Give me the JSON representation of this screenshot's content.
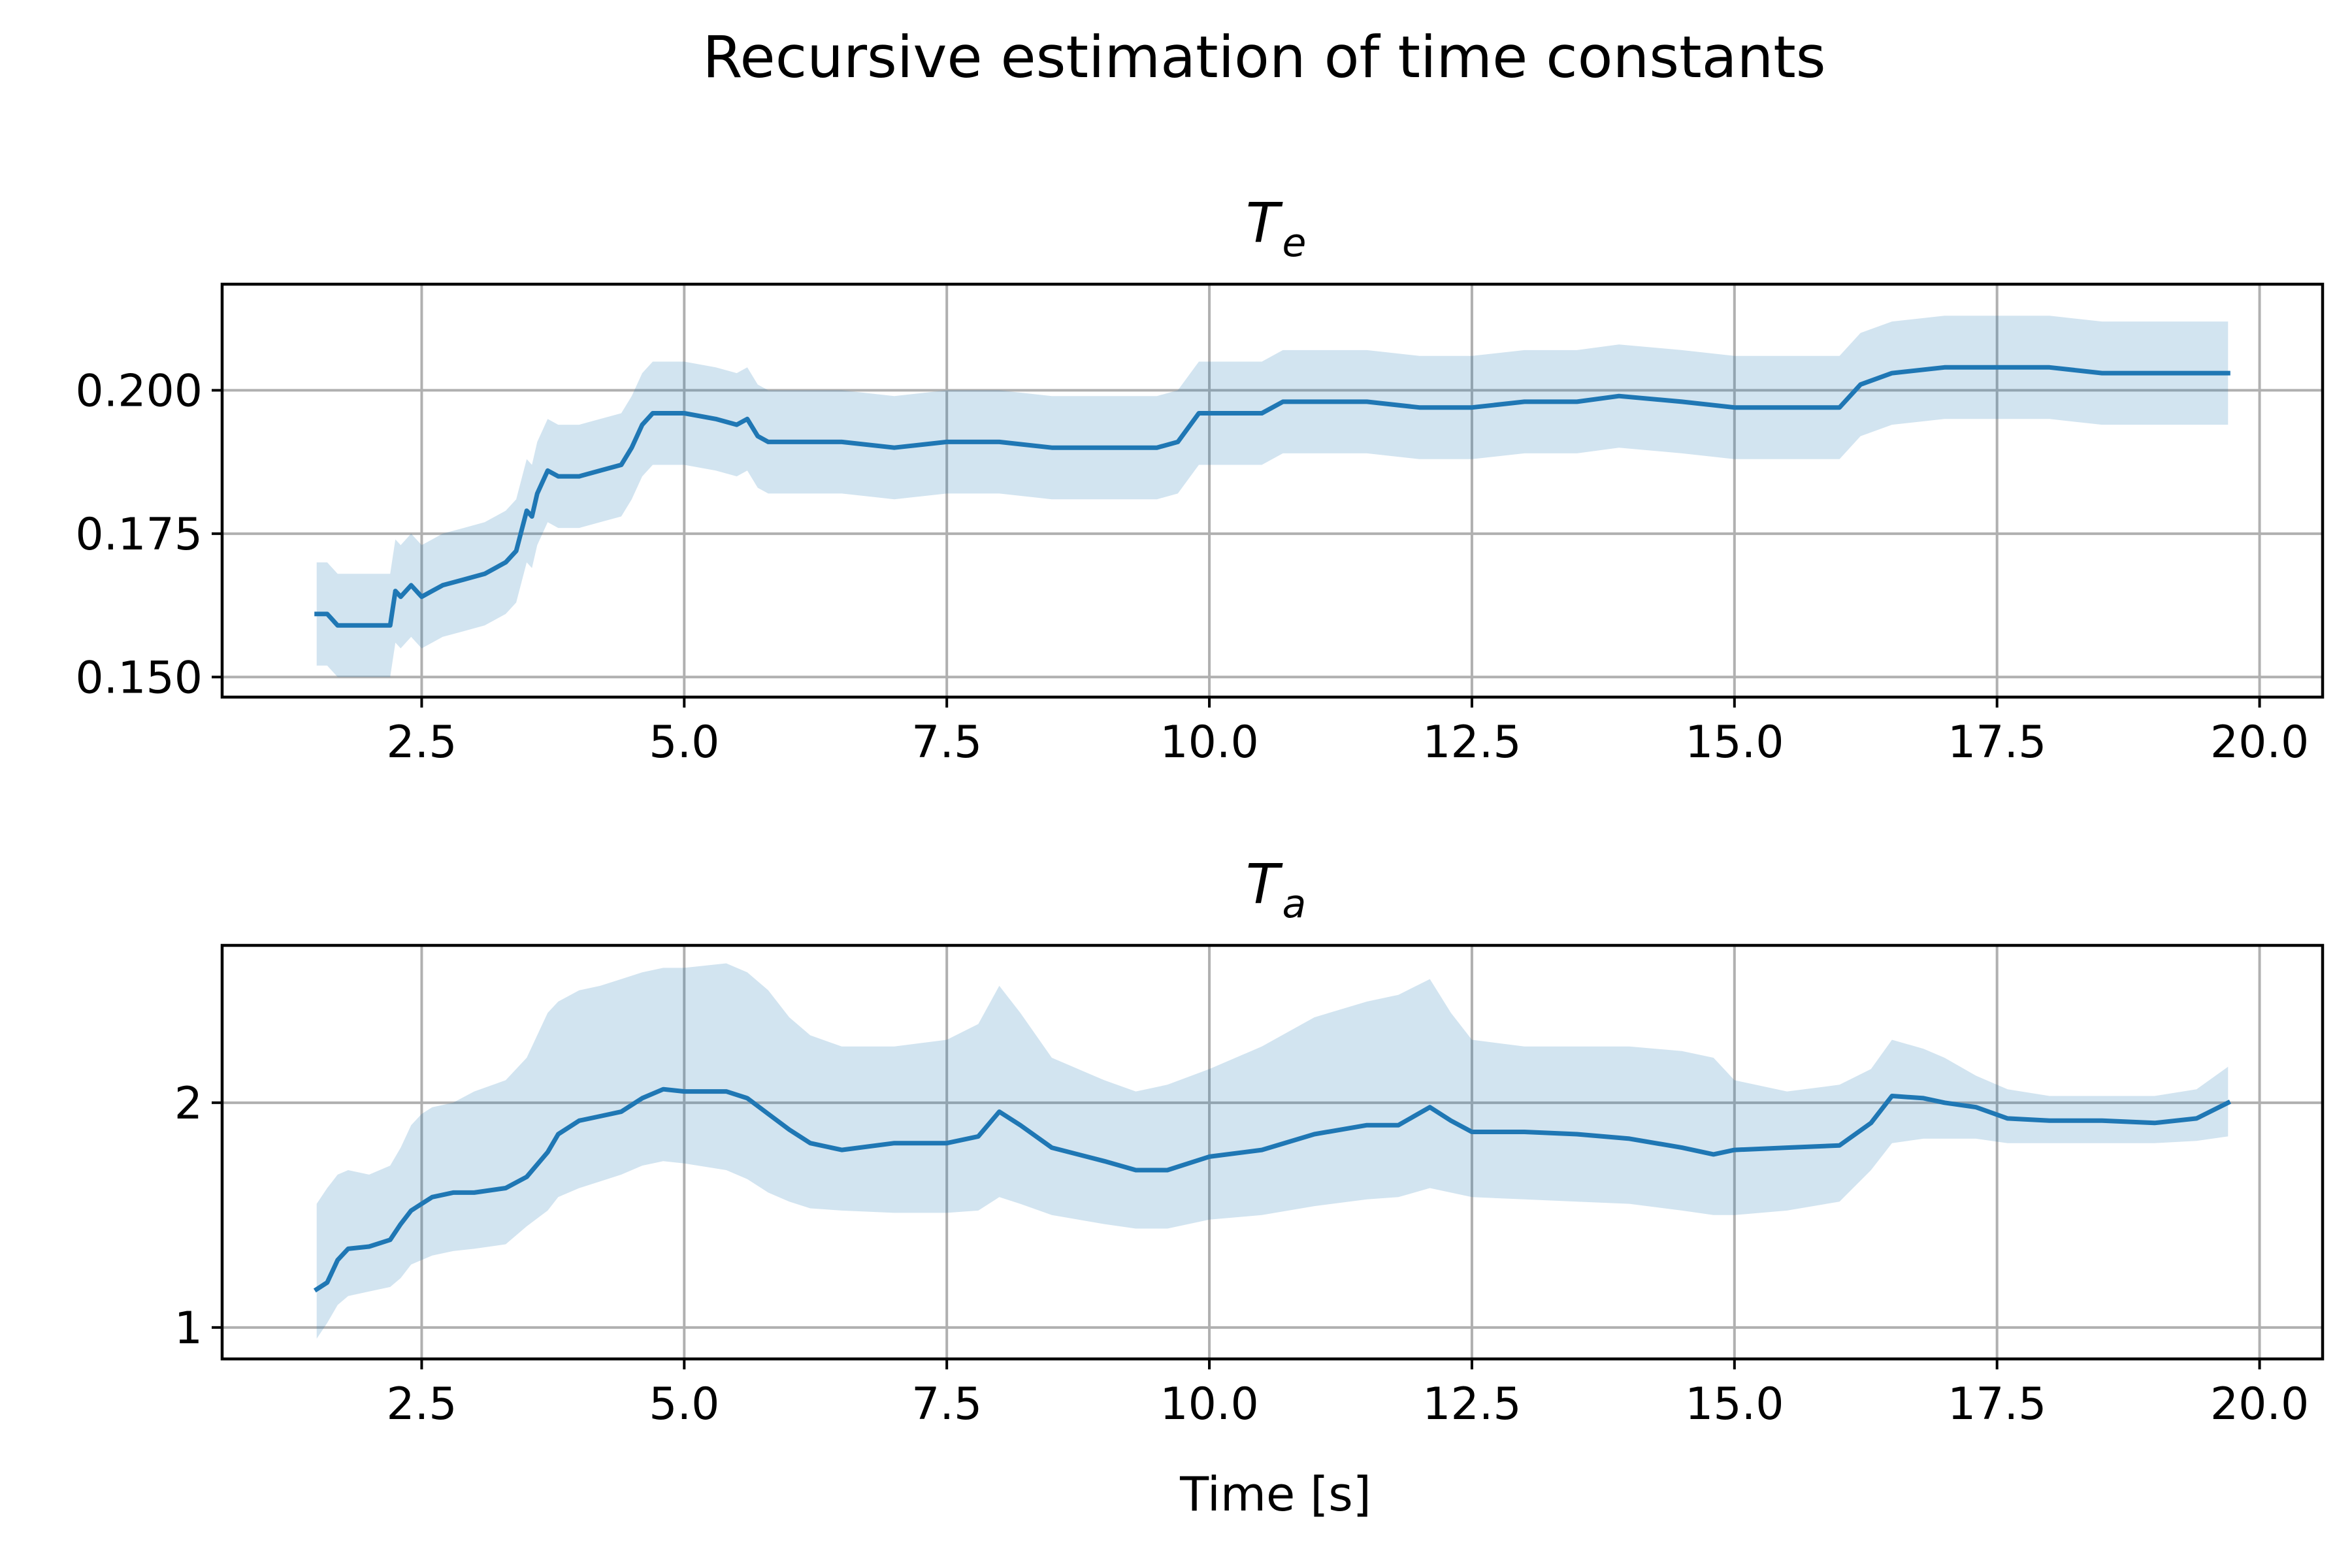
{
  "figure": {
    "suptitle": "Recursive estimation of time constants"
  },
  "chart_data": [
    {
      "type": "line",
      "title": "T",
      "title_subscript": "e",
      "xlabel": "",
      "ylabel": "",
      "xlim": [
        0.6,
        20.6
      ],
      "ylim": [
        0.1465,
        0.2185
      ],
      "xticks": [
        2.5,
        5.0,
        7.5,
        10.0,
        12.5,
        15.0,
        17.5,
        20.0
      ],
      "xtick_labels": [
        "2.5",
        "5.0",
        "7.5",
        "10.0",
        "12.5",
        "15.0",
        "17.5",
        "20.0"
      ],
      "yticks": [
        0.15,
        0.175,
        0.2
      ],
      "ytick_labels": [
        "0.150",
        "0.175",
        "0.200"
      ],
      "grid": true,
      "colors": {
        "line": "#1f77b4",
        "band": "#1f77b4"
      },
      "series": [
        {
          "x": [
            1.5,
            1.6,
            1.7,
            1.9,
            2.1,
            2.2,
            2.25,
            2.3,
            2.4,
            2.5,
            2.6,
            2.7,
            2.9,
            3.1,
            3.3,
            3.4,
            3.5,
            3.55,
            3.6,
            3.7,
            3.8,
            4.0,
            4.2,
            4.4,
            4.5,
            4.6,
            4.7,
            4.8,
            5.0,
            5.3,
            5.5,
            5.6,
            5.7,
            5.8,
            6.0,
            6.5,
            7.0,
            7.5,
            8.0,
            8.5,
            9.0,
            9.5,
            9.7,
            9.9,
            10.5,
            10.7,
            11.0,
            11.5,
            12.0,
            12.5,
            13.0,
            13.5,
            13.9,
            14.5,
            15.0,
            15.5,
            16.0,
            16.2,
            16.5,
            17.0,
            17.5,
            18.0,
            18.5,
            19.0,
            19.5,
            19.7
          ],
          "y": [
            0.161,
            0.161,
            0.159,
            0.159,
            0.159,
            0.159,
            0.165,
            0.164,
            0.166,
            0.164,
            0.165,
            0.166,
            0.167,
            0.168,
            0.17,
            0.172,
            0.179,
            0.178,
            0.182,
            0.186,
            0.185,
            0.185,
            0.186,
            0.187,
            0.19,
            0.194,
            0.196,
            0.196,
            0.196,
            0.195,
            0.194,
            0.195,
            0.192,
            0.191,
            0.191,
            0.191,
            0.19,
            0.191,
            0.191,
            0.19,
            0.19,
            0.19,
            0.191,
            0.196,
            0.196,
            0.198,
            0.198,
            0.198,
            0.197,
            0.197,
            0.198,
            0.198,
            0.199,
            0.198,
            0.197,
            0.197,
            0.197,
            0.201,
            0.203,
            0.204,
            0.204,
            0.204,
            0.203,
            0.203,
            0.203,
            0.203
          ],
          "lower": [
            0.152,
            0.152,
            0.15,
            0.15,
            0.15,
            0.15,
            0.156,
            0.155,
            0.157,
            0.155,
            0.156,
            0.157,
            0.158,
            0.159,
            0.161,
            0.163,
            0.17,
            0.169,
            0.173,
            0.177,
            0.176,
            0.176,
            0.177,
            0.178,
            0.181,
            0.185,
            0.187,
            0.187,
            0.187,
            0.186,
            0.185,
            0.186,
            0.183,
            0.182,
            0.182,
            0.182,
            0.181,
            0.182,
            0.182,
            0.181,
            0.181,
            0.181,
            0.182,
            0.187,
            0.187,
            0.189,
            0.189,
            0.189,
            0.188,
            0.188,
            0.189,
            0.189,
            0.19,
            0.189,
            0.188,
            0.188,
            0.188,
            0.192,
            0.194,
            0.195,
            0.195,
            0.195,
            0.194,
            0.194,
            0.194,
            0.194
          ],
          "upper": [
            0.17,
            0.17,
            0.168,
            0.168,
            0.168,
            0.168,
            0.174,
            0.173,
            0.175,
            0.173,
            0.174,
            0.175,
            0.176,
            0.177,
            0.179,
            0.181,
            0.188,
            0.187,
            0.191,
            0.195,
            0.194,
            0.194,
            0.195,
            0.196,
            0.199,
            0.203,
            0.205,
            0.205,
            0.205,
            0.204,
            0.203,
            0.204,
            0.201,
            0.2,
            0.2,
            0.2,
            0.199,
            0.2,
            0.2,
            0.199,
            0.199,
            0.199,
            0.2,
            0.205,
            0.205,
            0.207,
            0.207,
            0.207,
            0.206,
            0.206,
            0.207,
            0.207,
            0.208,
            0.207,
            0.206,
            0.206,
            0.206,
            0.21,
            0.212,
            0.213,
            0.213,
            0.213,
            0.212,
            0.212,
            0.212,
            0.212
          ]
        }
      ]
    },
    {
      "type": "line",
      "title": "T",
      "title_subscript": "a",
      "xlabel": "Time [s]",
      "ylabel": "",
      "xlim": [
        0.6,
        20.6
      ],
      "ylim": [
        0.86,
        2.7
      ],
      "xticks": [
        2.5,
        5.0,
        7.5,
        10.0,
        12.5,
        15.0,
        17.5,
        20.0
      ],
      "xtick_labels": [
        "2.5",
        "5.0",
        "7.5",
        "10.0",
        "12.5",
        "15.0",
        "17.5",
        "20.0"
      ],
      "yticks": [
        1,
        2
      ],
      "ytick_labels": [
        "1",
        "2"
      ],
      "grid": true,
      "colors": {
        "line": "#1f77b4",
        "band": "#1f77b4"
      },
      "series": [
        {
          "x": [
            1.5,
            1.6,
            1.7,
            1.8,
            2.0,
            2.2,
            2.3,
            2.4,
            2.5,
            2.6,
            2.8,
            3.0,
            3.3,
            3.5,
            3.7,
            3.8,
            4.0,
            4.2,
            4.4,
            4.6,
            4.8,
            5.0,
            5.4,
            5.6,
            5.8,
            6.0,
            6.2,
            6.5,
            7.0,
            7.5,
            7.8,
            8.0,
            8.2,
            8.5,
            9.0,
            9.3,
            9.6,
            10.0,
            10.5,
            11.0,
            11.5,
            11.8,
            12.1,
            12.3,
            12.5,
            13.0,
            13.5,
            14.0,
            14.5,
            14.8,
            15.0,
            15.5,
            16.0,
            16.3,
            16.5,
            16.8,
            17.0,
            17.3,
            17.6,
            18.0,
            18.5,
            19.0,
            19.4,
            19.7
          ],
          "y": [
            1.17,
            1.2,
            1.3,
            1.35,
            1.36,
            1.39,
            1.46,
            1.52,
            1.55,
            1.58,
            1.6,
            1.6,
            1.62,
            1.67,
            1.78,
            1.86,
            1.92,
            1.94,
            1.96,
            2.02,
            2.06,
            2.05,
            2.05,
            2.02,
            1.95,
            1.88,
            1.82,
            1.79,
            1.82,
            1.82,
            1.85,
            1.96,
            1.9,
            1.8,
            1.74,
            1.7,
            1.7,
            1.76,
            1.79,
            1.86,
            1.9,
            1.9,
            1.98,
            1.92,
            1.87,
            1.87,
            1.86,
            1.84,
            1.8,
            1.77,
            1.79,
            1.8,
            1.81,
            1.91,
            2.03,
            2.02,
            2.0,
            1.98,
            1.93,
            1.92,
            1.92,
            1.91,
            1.93,
            2.0
          ],
          "lower": [
            0.95,
            1.02,
            1.1,
            1.14,
            1.16,
            1.18,
            1.22,
            1.28,
            1.3,
            1.32,
            1.34,
            1.35,
            1.37,
            1.45,
            1.52,
            1.58,
            1.62,
            1.65,
            1.68,
            1.72,
            1.74,
            1.73,
            1.7,
            1.66,
            1.6,
            1.56,
            1.53,
            1.52,
            1.51,
            1.51,
            1.52,
            1.58,
            1.55,
            1.5,
            1.46,
            1.44,
            1.44,
            1.48,
            1.5,
            1.54,
            1.57,
            1.58,
            1.62,
            1.6,
            1.58,
            1.57,
            1.56,
            1.55,
            1.52,
            1.5,
            1.5,
            1.52,
            1.56,
            1.7,
            1.82,
            1.84,
            1.84,
            1.84,
            1.82,
            1.82,
            1.82,
            1.82,
            1.83,
            1.85
          ],
          "upper": [
            1.55,
            1.62,
            1.68,
            1.7,
            1.68,
            1.72,
            1.8,
            1.9,
            1.95,
            1.98,
            2.0,
            2.05,
            2.1,
            2.2,
            2.4,
            2.45,
            2.5,
            2.52,
            2.55,
            2.58,
            2.6,
            2.6,
            2.62,
            2.58,
            2.5,
            2.38,
            2.3,
            2.25,
            2.25,
            2.28,
            2.35,
            2.52,
            2.4,
            2.2,
            2.1,
            2.05,
            2.08,
            2.15,
            2.25,
            2.38,
            2.45,
            2.48,
            2.55,
            2.4,
            2.28,
            2.25,
            2.25,
            2.25,
            2.23,
            2.2,
            2.1,
            2.05,
            2.08,
            2.15,
            2.28,
            2.24,
            2.2,
            2.12,
            2.06,
            2.03,
            2.03,
            2.03,
            2.06,
            2.16
          ]
        }
      ]
    }
  ]
}
